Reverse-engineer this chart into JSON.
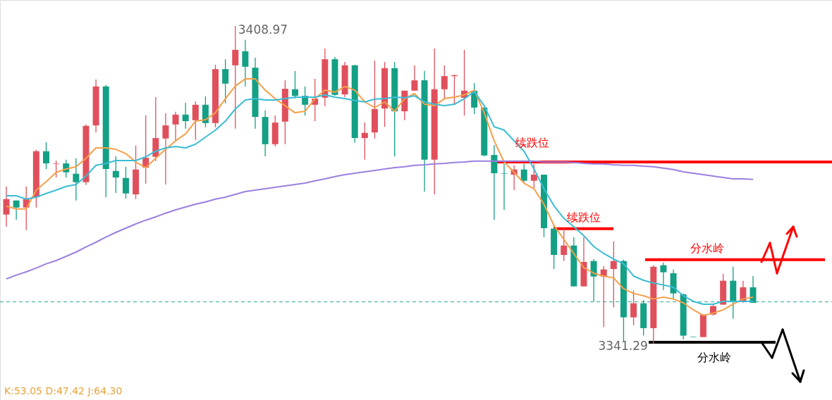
{
  "chart_data": {
    "type": "candlestick",
    "categories": [
      null,
      null,
      null,
      null,
      null,
      null,
      null,
      null,
      null,
      null,
      null,
      null,
      null,
      null,
      null,
      null,
      null,
      null,
      null,
      null,
      null,
      null,
      null,
      null,
      null,
      null,
      null,
      null,
      null,
      null,
      null,
      null,
      null,
      null,
      null,
      null,
      null,
      null,
      null,
      null,
      null,
      null,
      null,
      null,
      null,
      null,
      null,
      null,
      null,
      null,
      null,
      null,
      null,
      null,
      null,
      null,
      null,
      null,
      null,
      null,
      null,
      null,
      null,
      null,
      null,
      null,
      null,
      null,
      null,
      null,
      null,
      null,
      null,
      null,
      null,
      null
    ],
    "ohlc": [
      [
        3368.8,
        3374.8,
        3366.2,
        3372.1
      ],
      [
        3371.8,
        3371.8,
        3367.7,
        3370.3
      ],
      [
        3370.3,
        3374.8,
        3365.5,
        3372.1
      ],
      [
        3372.5,
        3382.6,
        3370.3,
        3382.3
      ],
      [
        3382.3,
        3384.2,
        3378.5,
        3379.7
      ],
      [
        3379.6,
        3380.3,
        3376.7,
        3379.7
      ],
      [
        3379.7,
        3380.5,
        3376.7,
        3377.8
      ],
      [
        3377.5,
        3380.8,
        3371.8,
        3375.7
      ],
      [
        3375.7,
        3388.0,
        3375.1,
        3387.7
      ],
      [
        3387.8,
        3397.6,
        3386.3,
        3396.1
      ],
      [
        3396.1,
        3396.4,
        3372.5,
        3378.5
      ],
      [
        3378.1,
        3381.2,
        3373.4,
        3376.7
      ],
      [
        3376.6,
        3379.0,
        3372.2,
        3373.3
      ],
      [
        3373.1,
        3383.5,
        3372.1,
        3378.4
      ],
      [
        3378.8,
        3389.9,
        3375.4,
        3380.9
      ],
      [
        3381.1,
        3393.8,
        3380.2,
        3385.1
      ],
      [
        3385.0,
        3390.4,
        3375.2,
        3387.8
      ],
      [
        3388.0,
        3390.7,
        3384.5,
        3390.1
      ],
      [
        3390.1,
        3392.6,
        3387.1,
        3388.7
      ],
      [
        3388.9,
        3392.9,
        3384.7,
        3392.2
      ],
      [
        3392.2,
        3394.0,
        3387.4,
        3388.3
      ],
      [
        3388.3,
        3400.7,
        3387.4,
        3399.8
      ],
      [
        3399.8,
        3401.9,
        3392.5,
        3396.7
      ],
      [
        3400.6,
        3408.97,
        3387.1,
        3403.9
      ],
      [
        3403.6,
        3406.0,
        3396.1,
        3400.3
      ],
      [
        3400.1,
        3402.2,
        3387.1,
        3389.6
      ],
      [
        3389.6,
        3391.0,
        3381.2,
        3383.8
      ],
      [
        3383.8,
        3389.9,
        3383.3,
        3388.4
      ],
      [
        3388.6,
        3397.4,
        3383.8,
        3395.6
      ],
      [
        3395.5,
        3399.4,
        3393.5,
        3394.1
      ],
      [
        3394.1,
        3396.1,
        3389.9,
        3392.2
      ],
      [
        3392.2,
        3397.7,
        3388.7,
        3393.5
      ],
      [
        3393.7,
        3404.2,
        3391.9,
        3401.9
      ],
      [
        3401.9,
        3402.4,
        3394.1,
        3394.3
      ],
      [
        3394.4,
        3401.3,
        3393.8,
        3400.6
      ],
      [
        3400.6,
        3400.7,
        3384.1,
        3385.1
      ],
      [
        3385.1,
        3388.4,
        3380.5,
        3386.2
      ],
      [
        3386.3,
        3401.6,
        3385.0,
        3391.3
      ],
      [
        3391.4,
        3401.3,
        3387.5,
        3400.0
      ],
      [
        3400.0,
        3401.3,
        3381.2,
        3390.8
      ],
      [
        3390.8,
        3395.2,
        3388.9,
        3395.2
      ],
      [
        3395.2,
        3400.6,
        3395.2,
        3397.4
      ],
      [
        3397.4,
        3399.4,
        3373.7,
        3380.5
      ],
      [
        3380.5,
        3404.2,
        3373.1,
        3395.5
      ],
      [
        3395.5,
        3400.6,
        3393.5,
        3398.3
      ],
      [
        3398.3,
        3398.6,
        3392.3,
        3398.5
      ],
      [
        3393.7,
        3403.9,
        3389.9,
        3395.2
      ],
      [
        3395.2,
        3396.8,
        3390.2,
        3391.6
      ],
      [
        3391.6,
        3391.6,
        3381.2,
        3381.4
      ],
      [
        3381.5,
        3383.6,
        3367.7,
        3377.6
      ],
      [
        3377.6,
        3379.6,
        3369.8,
        3377.5
      ],
      [
        3377.3,
        3379.3,
        3374.0,
        3378.4
      ],
      [
        3378.4,
        3379.6,
        3375.8,
        3376.0
      ],
      [
        3376.0,
        3379.6,
        3374.3,
        3377.3
      ],
      [
        3377.3,
        3377.3,
        3364.0,
        3365.9
      ],
      [
        3365.8,
        3366.7,
        3357.2,
        3360.2
      ],
      [
        3360.2,
        3365.9,
        3358.9,
        3362.2
      ],
      [
        3362.2,
        3364.0,
        3353.5,
        3353.5
      ],
      [
        3353.5,
        3364.0,
        3353.5,
        3358.7
      ],
      [
        3358.9,
        3359.3,
        3350.3,
        3355.6
      ],
      [
        3355.6,
        3357.8,
        3344.8,
        3357.1
      ],
      [
        3357.2,
        3363.1,
        3349.0,
        3358.9
      ],
      [
        3358.9,
        3359.2,
        3341.8,
        3346.9
      ],
      [
        3346.9,
        3352.6,
        3345.2,
        3349.9
      ],
      [
        3349.9,
        3350.6,
        3343.0,
        3344.6
      ],
      [
        3344.6,
        3358.0,
        3341.29,
        3357.7
      ],
      [
        3358.0,
        3358.6,
        3352.7,
        3356.5
      ],
      [
        3356.3,
        3357.1,
        3350.8,
        3352.0
      ],
      [
        3351.8,
        3352.0,
        3342.2,
        3343.0
      ],
      [
        3342.8,
        3342.8,
        3342.7,
        3342.7
      ],
      [
        3342.7,
        3347.5,
        3342.7,
        3347.5
      ],
      [
        3347.5,
        3349.6,
        3347.3,
        3349.3
      ],
      [
        3349.6,
        3356.2,
        3349.6,
        3354.7
      ],
      [
        3354.7,
        3357.7,
        3346.6,
        3350.3
      ],
      [
        3350.2,
        3354.7,
        3350.0,
        3353.3
      ],
      [
        3353.3,
        3355.7,
        3350.0,
        3350.0
      ]
    ],
    "colors": [
      "#e0505c",
      "#14a085",
      "#e0505c",
      "#e0505c",
      "#14a085",
      "#e0505c",
      "#14a085",
      "#14a085",
      "#e0505c",
      "#e0505c",
      "#14a085",
      "#14a085",
      "#14a085",
      "#e0505c",
      "#e0505c",
      "#e0505c",
      "#e0505c",
      "#e0505c",
      "#14a085",
      "#e0505c",
      "#14a085",
      "#e0505c",
      "#14a085",
      "#e0505c",
      "#14a085",
      "#14a085",
      "#14a085",
      "#e0505c",
      "#e0505c",
      "#14a085",
      "#14a085",
      "#e0505c",
      "#e0505c",
      "#14a085",
      "#e0505c",
      "#14a085",
      "#e0505c",
      "#e0505c",
      "#e0505c",
      "#14a085",
      "#e0505c",
      "#e0505c",
      "#14a085",
      "#e0505c",
      "#e0505c",
      "#e0505c",
      "#e0505c",
      "#14a085",
      "#14a085",
      "#14a085",
      "#14a085",
      "#e0505c",
      "#14a085",
      "#e0505c",
      "#14a085",
      "#14a085",
      "#e0505c",
      "#14a085",
      "#e0505c",
      "#14a085",
      "#e0505c",
      "#e0505c",
      "#14a085",
      "#e0505c",
      "#14a085",
      "#e0505c",
      "#14a085",
      "#14a085",
      "#14a085",
      "#14a085",
      "#e0505c",
      "#e0505c",
      "#e0505c",
      "#14a085",
      "#e0505c",
      "#14a085"
    ],
    "series": [
      {
        "type": "line",
        "color": "#f5a04a",
        "values": [
          3370.6,
          3370.0,
          3370.0,
          3374.0,
          3375.8,
          3377.8,
          3378.5,
          3379.0,
          3380.8,
          3383.0,
          3383.0,
          3382.7,
          3381.8,
          3380.0,
          3378.8,
          3380.8,
          3382.7,
          3384.5,
          3386.0,
          3388.7,
          3389.0,
          3390.5,
          3393.5,
          3396.2,
          3397.7,
          3397.7,
          3395.3,
          3393.5,
          3392.0,
          3390.5,
          3390.8,
          3393.5,
          3395.3,
          3394.9,
          3396.1,
          3395.3,
          3392.8,
          3391.6,
          3392.8,
          3390.8,
          3393.5,
          3394.6,
          3392.3,
          3392.0,
          3393.5,
          3393.8,
          3394.3,
          3395.3,
          3390.5,
          3384.5,
          3380.0,
          3377.8,
          3375.5,
          3374.3,
          3371.0,
          3366.5,
          3363.5,
          3360.5,
          3357.5,
          3356.3,
          3355.7,
          3355.3,
          3353.0,
          3352.0,
          3351.5,
          3350.8,
          3351.2,
          3350.8,
          3350.0,
          3348.5,
          3347.3,
          3347.8,
          3348.5,
          3349.7,
          3350.8,
          3351.2
        ]
      },
      {
        "type": "line",
        "color": "#3bbcd4",
        "values": [
          3372.8,
          3372.8,
          3372.1,
          3372.5,
          3373.3,
          3374.0,
          3374.8,
          3375.2,
          3377.0,
          3379.3,
          3379.7,
          3380.3,
          3380.3,
          3380.3,
          3381.1,
          3382.3,
          3383.0,
          3383.3,
          3383.0,
          3383.8,
          3385.3,
          3386.8,
          3388.7,
          3391.3,
          3393.2,
          3393.5,
          3393.2,
          3393.2,
          3393.5,
          3393.8,
          3393.8,
          3393.8,
          3394.3,
          3393.8,
          3393.5,
          3393.1,
          3392.8,
          3393.4,
          3393.5,
          3393.8,
          3393.7,
          3394.1,
          3392.8,
          3392.3,
          3392.0,
          3392.3,
          3393.5,
          3395.0,
          3392.0,
          3387.5,
          3386.8,
          3384.5,
          3382.3,
          3378.5,
          3374.3,
          3370.7,
          3368.0,
          3366.2,
          3364.3,
          3362.0,
          3360.5,
          3359.3,
          3358.3,
          3355.7,
          3354.8,
          3354.2,
          3353.8,
          3353.3,
          3351.5,
          3350.3,
          3349.7,
          3349.7,
          3350.3,
          3350.3,
          3350.3,
          3350.3
        ]
      },
      {
        "type": "line",
        "color": "#9b80e0",
        "values": [
          3355.1,
          3355.9,
          3356.6,
          3357.4,
          3358.3,
          3359.0,
          3359.9,
          3360.8,
          3361.9,
          3362.9,
          3364.0,
          3365.0,
          3365.9,
          3366.8,
          3367.6,
          3368.3,
          3369.1,
          3369.8,
          3370.4,
          3371.0,
          3371.5,
          3372.1,
          3372.5,
          3373.1,
          3373.7,
          3374.0,
          3374.3,
          3374.6,
          3374.9,
          3375.2,
          3375.5,
          3376.0,
          3376.4,
          3376.9,
          3377.3,
          3377.6,
          3377.9,
          3378.2,
          3378.5,
          3378.8,
          3379.0,
          3379.3,
          3379.4,
          3379.6,
          3379.7,
          3379.9,
          3380.0,
          3380.2,
          3380.2,
          3380.2,
          3380.2,
          3380.2,
          3380.2,
          3380.2,
          3380.0,
          3380.0,
          3380.0,
          3379.9,
          3379.7,
          3379.6,
          3379.6,
          3379.4,
          3379.3,
          3379.3,
          3379.1,
          3379.0,
          3378.7,
          3378.4,
          3377.9,
          3377.6,
          3377.3,
          3377.0,
          3376.7,
          3376.4,
          3376.4,
          3376.3
        ]
      }
    ],
    "ref_lines": [
      {
        "axis": "y",
        "value": 3380.0,
        "label": "续跌位",
        "color": "#ff0000",
        "line_style": "solid"
      },
      {
        "axis": "y",
        "value": 3365.8,
        "label": "续跌位",
        "color": "#ff0000",
        "line_style": "solid"
      },
      {
        "axis": "y",
        "value": 3359.2,
        "label": "分水岭",
        "color": "#ff0000",
        "line_style": "solid"
      },
      {
        "axis": "y",
        "value": 3341.6,
        "label": "分水岭",
        "color": "#000000",
        "line_style": "solid"
      },
      {
        "axis": "y",
        "value": 3350.2,
        "label": null,
        "color": "#26a69a",
        "line_style": "dashed"
      }
    ],
    "annotations": [
      "3408.97",
      "3341.29",
      "K:53.05  D:47.42  J:64.30"
    ],
    "marker": "none",
    "tick_labels": false
  }
}
